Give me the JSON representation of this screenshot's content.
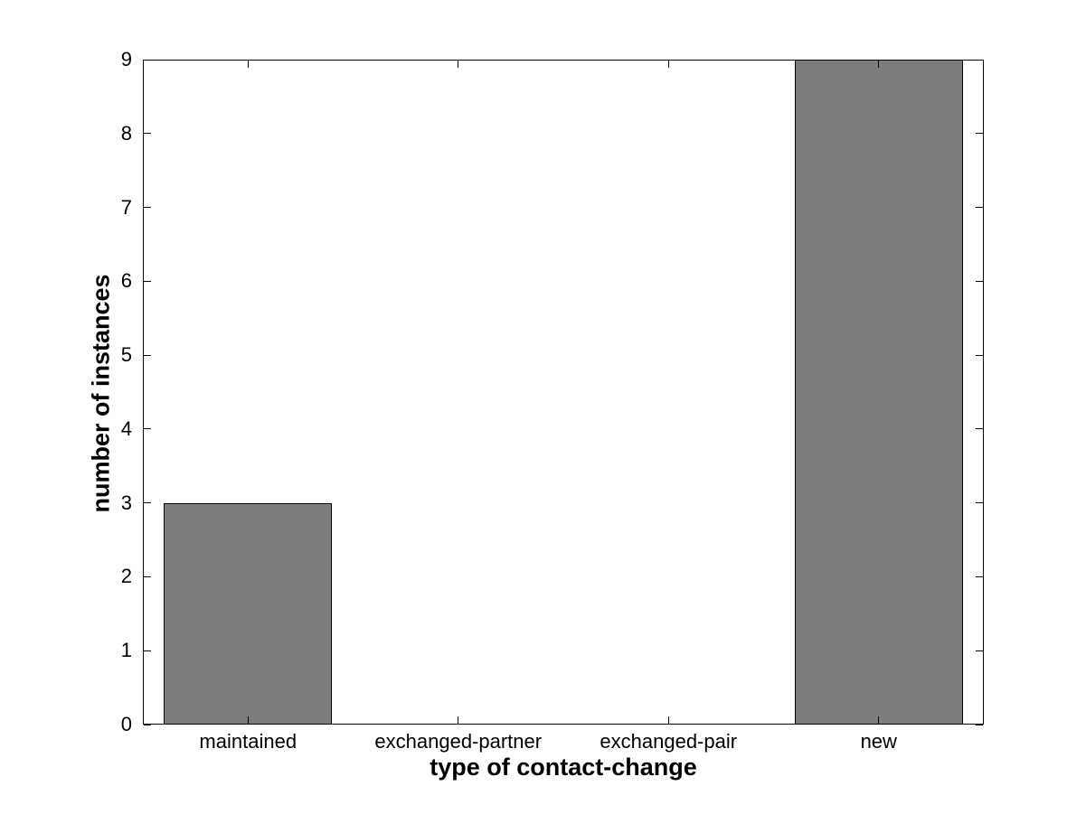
{
  "chart_data": {
    "type": "bar",
    "title": "",
    "xlabel": "type of contact-change",
    "ylabel": "number of instances",
    "categories": [
      "maintained",
      "exchanged-partner",
      "exchanged-pair",
      "new"
    ],
    "values": [
      3,
      0,
      0,
      9
    ],
    "ylim": [
      0,
      9
    ],
    "ytick_step": 1,
    "yticks": [
      0,
      1,
      2,
      3,
      4,
      5,
      6,
      7,
      8,
      9
    ],
    "bar_width_fraction": 0.8,
    "grid": false,
    "legend": null,
    "colors": {
      "bar_fill": "#7d7d7d",
      "bar_edge": "#000000",
      "axis": "#000000",
      "background": "#ffffff",
      "text": "#000000"
    }
  }
}
